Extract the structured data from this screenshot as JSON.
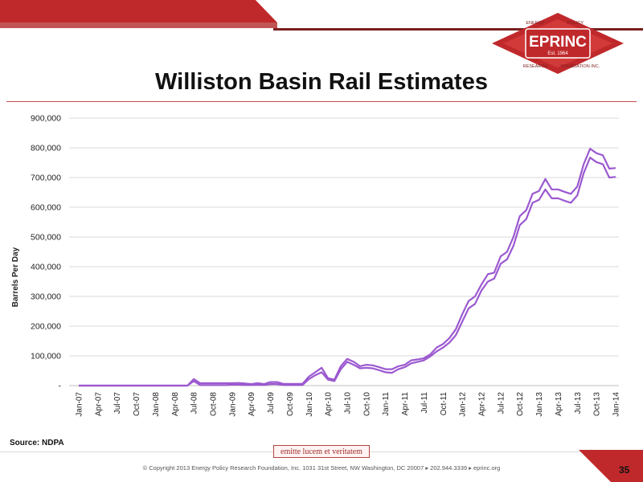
{
  "header": {
    "title": "Williston Basin Rail Estimates",
    "accent_color": "#c0292b"
  },
  "logo": {
    "name": "EPRINC",
    "est": "Est. 1964",
    "words": [
      "ENERGY",
      "POLICY",
      "RESEARCH",
      "FOUNDATION INC."
    ]
  },
  "chart_data": {
    "type": "line",
    "ylabel": "Barrels Per Day",
    "ylim": [
      0,
      900000
    ],
    "y_ticks": [
      "-",
      "100,000",
      "200,000",
      "300,000",
      "400,000",
      "500,000",
      "600,000",
      "700,000",
      "800,000",
      "900,000"
    ],
    "grid": true,
    "x_tick_labels": [
      "Jan-07",
      "Apr-07",
      "Jul-07",
      "Oct-07",
      "Jan-08",
      "Apr-08",
      "Jul-08",
      "Oct-08",
      "Jan-09",
      "Apr-09",
      "Jul-09",
      "Oct-09",
      "Jan-10",
      "Apr-10",
      "Jul-10",
      "Oct-10",
      "Jan-11",
      "Apr-11",
      "Jul-11",
      "Oct-11",
      "Jan-12",
      "Apr-12",
      "Jul-12",
      "Oct-12",
      "Jan-13",
      "Apr-13",
      "Jul-13",
      "Oct-13",
      "Jan-14"
    ],
    "line_color": "#9b59d0",
    "series": [
      {
        "values": [
          0,
          0,
          0,
          0,
          0,
          0,
          0,
          0,
          0,
          0,
          0,
          0,
          0,
          0,
          0,
          0,
          0,
          0,
          22000,
          8000,
          8000,
          8000,
          8000,
          8000,
          8000,
          9000,
          7000,
          5000,
          8000,
          5000,
          12000,
          12000,
          6000,
          6000,
          6000,
          6000,
          30000,
          45000,
          60000,
          25000,
          20000,
          65000,
          90000,
          80000,
          65000,
          70000,
          68000,
          62000,
          55000,
          55000,
          65000,
          70000,
          85000,
          88000,
          92000,
          105000,
          128000,
          140000,
          160000,
          190000,
          240000,
          285000,
          300000,
          340000,
          375000,
          380000,
          435000,
          450000,
          500000,
          570000,
          590000,
          645000,
          655000,
          695000,
          660000,
          660000,
          652000,
          645000,
          670000,
          745000,
          797000,
          782000,
          775000,
          730000,
          732000
        ]
      },
      {
        "values": [
          0,
          0,
          0,
          0,
          0,
          0,
          0,
          0,
          0,
          0,
          0,
          0,
          0,
          0,
          0,
          0,
          0,
          0,
          15000,
          2000,
          2000,
          2000,
          2000,
          2000,
          3000,
          3000,
          2000,
          2000,
          3000,
          2000,
          5000,
          5000,
          2000,
          2000,
          2000,
          2000,
          22000,
          35000,
          45000,
          20000,
          15000,
          55000,
          80000,
          70000,
          58000,
          60000,
          58000,
          52000,
          45000,
          43000,
          55000,
          62000,
          75000,
          80000,
          85000,
          98000,
          115000,
          128000,
          145000,
          170000,
          215000,
          260000,
          275000,
          320000,
          350000,
          360000,
          410000,
          425000,
          470000,
          540000,
          560000,
          615000,
          625000,
          660000,
          630000,
          630000,
          622000,
          615000,
          640000,
          715000,
          767000,
          752000,
          745000,
          700000,
          702000
        ]
      }
    ]
  },
  "footer": {
    "source": "Source: NDPA",
    "motto": "emitte lucem et veritatem",
    "copyright": "© Copyright 2013 Energy Policy Research Foundation, Inc. 1031 31st Street, NW Washington, DC 20007 ▸ 202.944.3339 ▸ eprinc.org",
    "page_number": "35"
  }
}
